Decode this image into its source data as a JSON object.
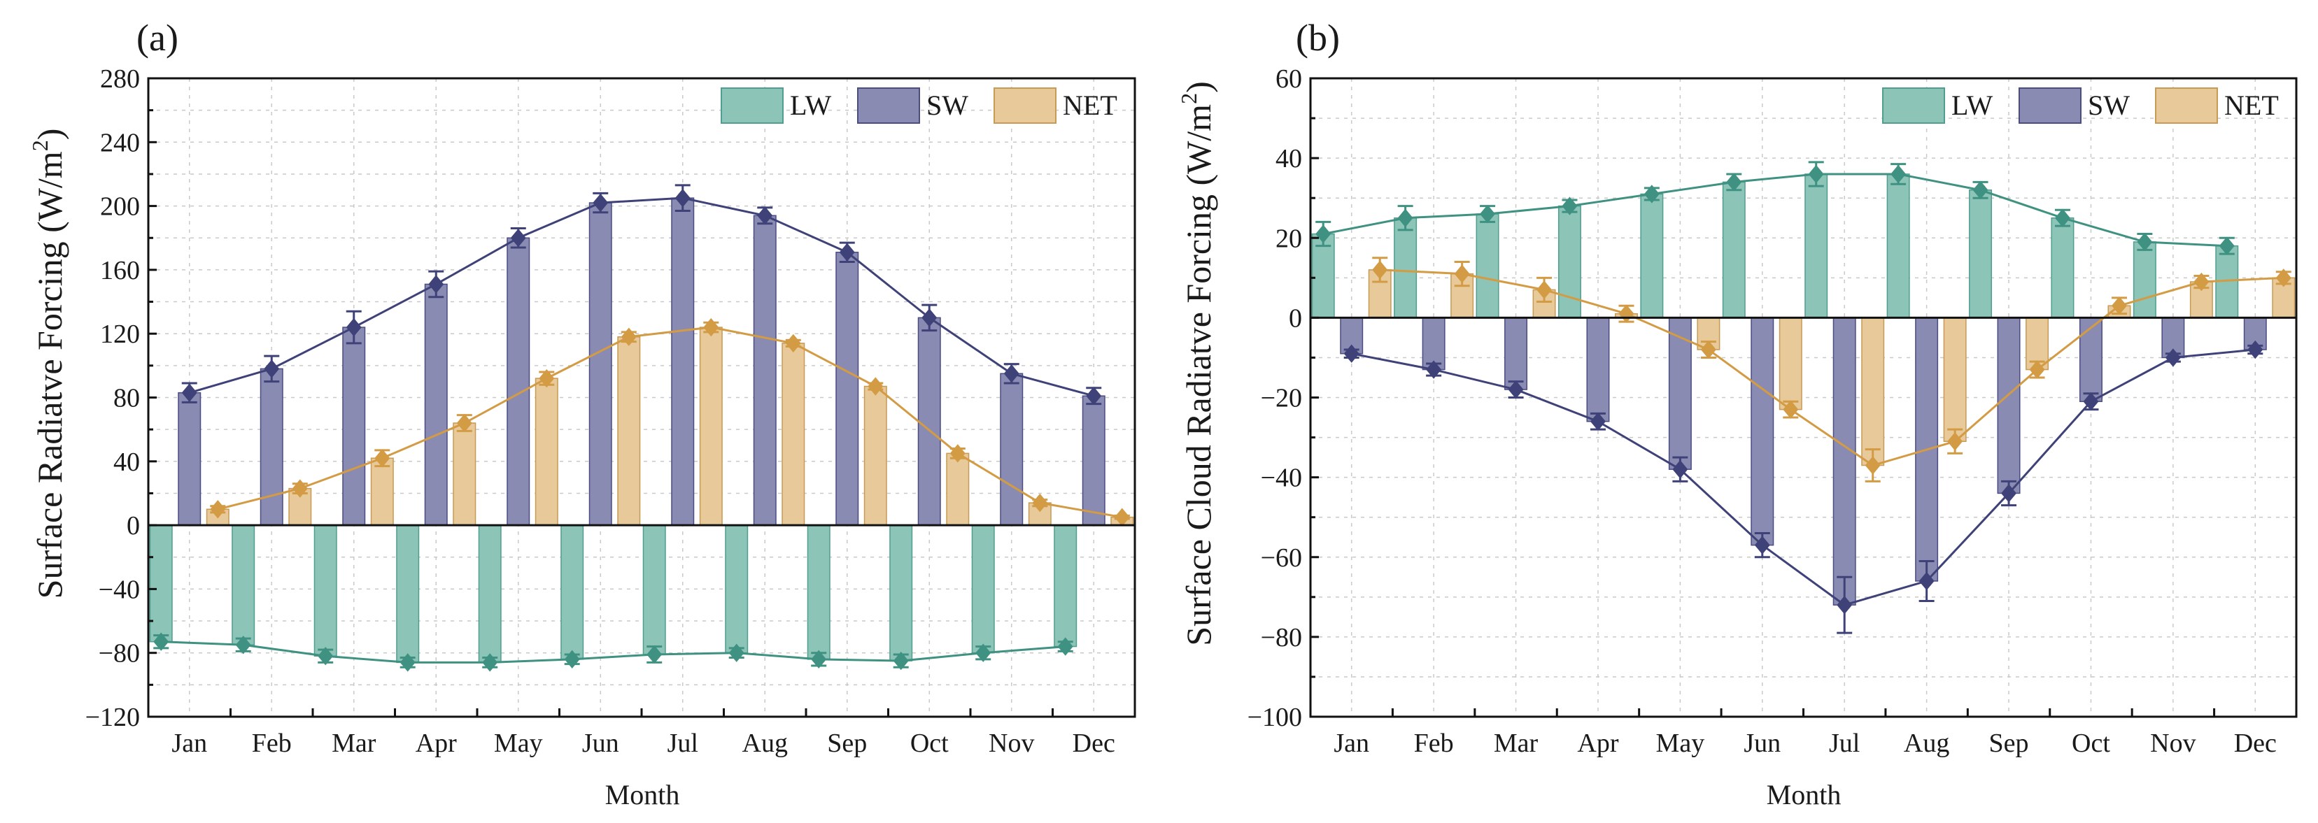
{
  "colors": {
    "LW": "#8cc4b8",
    "LW_edge": "#4f9e8f",
    "LW_line": "#3f9282",
    "SW": "#8a8bb3",
    "SW_edge": "#4a4c82",
    "SW_line": "#3f4278",
    "NET": "#e8c99a",
    "NET_edge": "#c79a55",
    "NET_line": "#d39b44"
  },
  "chart_data": [
    {
      "panel": "(a)",
      "type": "bar",
      "ylabel_main": "Surface Radiatve Forcing (W/m",
      "ylabel_sup": "2",
      "ylabel_end": ")",
      "xlabel": "Month",
      "ylim": [
        -120,
        280
      ],
      "yticks": [
        -120,
        -80,
        -40,
        0,
        40,
        80,
        120,
        160,
        200,
        240,
        280
      ],
      "ytick_labels": [
        "−120",
        "−80",
        "−40",
        "0",
        "40",
        "80",
        "120",
        "160",
        "200",
        "240",
        "280"
      ],
      "grid": true,
      "legend_position": "top-right",
      "categories": [
        "Jan",
        "Feb",
        "Mar",
        "Apr",
        "May",
        "Jun",
        "Jul",
        "Aug",
        "Sep",
        "Oct",
        "Nov",
        "Dec"
      ],
      "series": [
        {
          "name": "LW",
          "values": [
            -73,
            -75,
            -82,
            -86,
            -86,
            -84,
            -81,
            -80,
            -84,
            -85,
            -80,
            -76
          ],
          "errors": [
            4,
            4,
            4,
            3,
            3,
            3,
            5,
            3,
            4,
            4,
            4,
            3
          ]
        },
        {
          "name": "SW",
          "values": [
            83,
            98,
            124,
            151,
            180,
            202,
            205,
            194,
            171,
            130,
            95,
            81
          ],
          "errors": [
            6,
            8,
            10,
            8,
            6,
            6,
            8,
            5,
            6,
            8,
            6,
            5
          ]
        },
        {
          "name": "NET",
          "values": [
            10,
            23,
            42,
            64,
            92,
            118,
            124,
            114,
            87,
            45,
            14,
            5
          ],
          "errors": [
            2,
            3,
            5,
            5,
            4,
            3,
            3,
            2,
            2,
            3,
            2,
            1
          ]
        }
      ]
    },
    {
      "panel": "(b)",
      "type": "bar",
      "ylabel_main": "Surface Cloud Radiatve Forcing (W/m",
      "ylabel_sup": "2",
      "ylabel_end": ")",
      "xlabel": "Month",
      "ylim": [
        -100,
        60
      ],
      "yticks": [
        -100,
        -80,
        -60,
        -40,
        -20,
        0,
        20,
        40,
        60
      ],
      "ytick_labels": [
        "−100",
        "−80",
        "−60",
        "−40",
        "−20",
        "0",
        "20",
        "40",
        "60"
      ],
      "grid": true,
      "legend_position": "top-right",
      "categories": [
        "Jan",
        "Feb",
        "Mar",
        "Apr",
        "May",
        "Jun",
        "Jul",
        "Aug",
        "Sep",
        "Oct",
        "Nov",
        "Dec"
      ],
      "series": [
        {
          "name": "LW",
          "values": [
            21,
            25,
            26,
            28,
            31,
            34,
            36,
            36,
            32,
            25,
            19,
            18
          ],
          "errors": [
            3,
            3,
            2,
            1.5,
            1.5,
            2,
            3,
            2.5,
            2,
            2,
            2,
            2
          ]
        },
        {
          "name": "SW",
          "values": [
            -9,
            -13,
            -18,
            -26,
            -38,
            -57,
            -72,
            -66,
            -44,
            -21,
            -10,
            -8
          ],
          "errors": [
            1,
            1.5,
            2,
            2,
            3,
            3,
            7,
            5,
            3,
            2,
            1,
            1
          ]
        },
        {
          "name": "NET",
          "values": [
            12,
            11,
            7,
            1,
            -8,
            -23,
            -37,
            -31,
            -13,
            3,
            9,
            10
          ],
          "errors": [
            3,
            3,
            3,
            2,
            2,
            2,
            4,
            3,
            2,
            2,
            1.5,
            1.5
          ]
        }
      ]
    }
  ]
}
